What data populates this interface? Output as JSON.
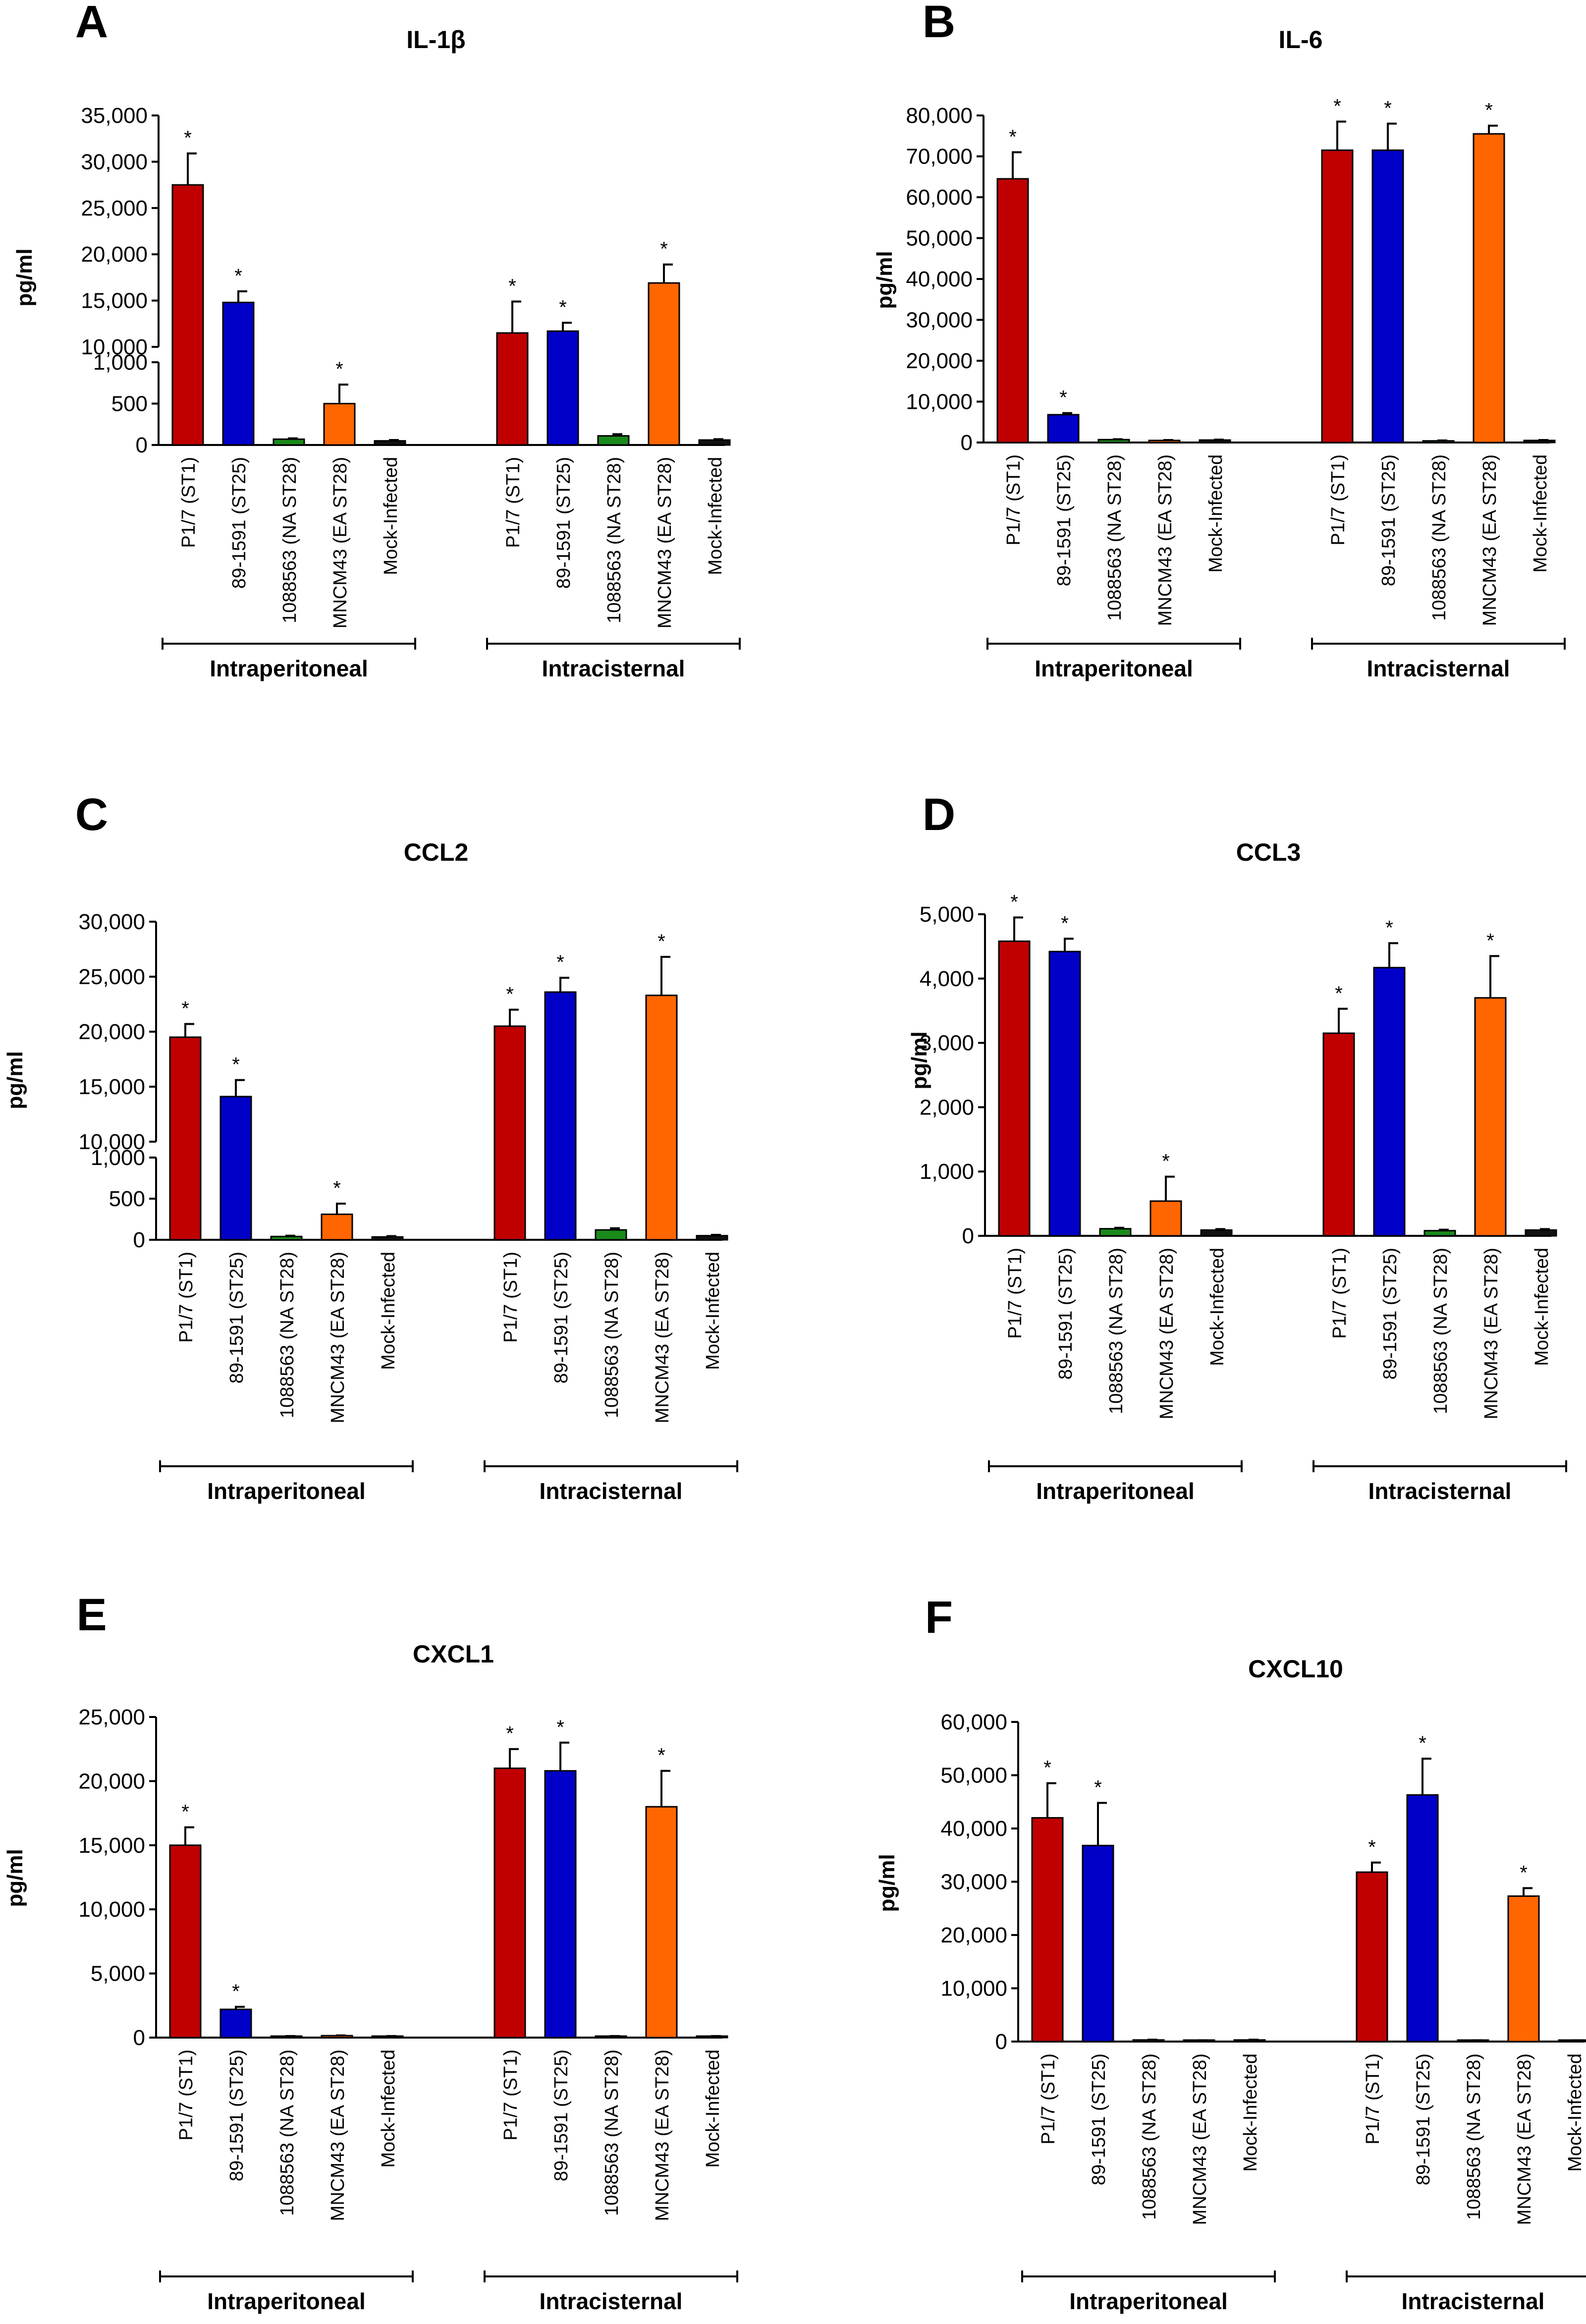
{
  "figure": {
    "categories": [
      "P1/7 (ST1)",
      "89-1591 (ST25)",
      "1088563 (NA ST28)",
      "MNCM43 (EA ST28)",
      "Mock-Infected"
    ],
    "groups": [
      "Intraperitoneal",
      "Intracisternal"
    ],
    "colors": [
      "#c00000",
      "#0000c8",
      "#1a8a1a",
      "#ff6600",
      "#111111"
    ],
    "ylabel": "pg/ml"
  },
  "chart_data": [
    {
      "type": "bar",
      "panel": "A",
      "title": "IL-1β",
      "ylabel": "pg/ml",
      "broken_axis": true,
      "lower_ticks": [
        "0",
        "500",
        "1,000"
      ],
      "upper_ticks": [
        "10,000",
        "15,000",
        "20,000",
        "25,000",
        "30,000",
        "35,000"
      ],
      "series": [
        {
          "name": "Intraperitoneal",
          "values": [
            27500,
            14800,
            70,
            500,
            50
          ],
          "errors": [
            3400,
            1200,
            10,
            230,
            10
          ],
          "significant": [
            true,
            true,
            false,
            true,
            false
          ]
        },
        {
          "name": "Intracisternal",
          "values": [
            11500,
            11700,
            110,
            16900,
            60
          ],
          "errors": [
            3400,
            900,
            20,
            2000,
            10
          ],
          "significant": [
            true,
            true,
            false,
            true,
            false
          ]
        }
      ]
    },
    {
      "type": "bar",
      "panel": "B",
      "title": "IL-6",
      "ylabel": "pg/ml",
      "broken_axis": false,
      "ylim": [
        0,
        80000
      ],
      "ticks": [
        "0",
        "10,000",
        "20,000",
        "30,000",
        "40,000",
        "50,000",
        "60,000",
        "70,000",
        "80,000"
      ],
      "series": [
        {
          "name": "Intraperitoneal",
          "values": [
            64500,
            6800,
            700,
            500,
            600
          ],
          "errors": [
            6500,
            400,
            100,
            100,
            100
          ],
          "significant": [
            true,
            true,
            false,
            false,
            false
          ]
        },
        {
          "name": "Intracisternal",
          "values": [
            71500,
            71500,
            400,
            75500,
            500
          ],
          "errors": [
            7000,
            6500,
            100,
            2000,
            100
          ],
          "significant": [
            true,
            true,
            false,
            true,
            false
          ]
        }
      ]
    },
    {
      "type": "bar",
      "panel": "C",
      "title": "CCL2",
      "ylabel": "pg/ml",
      "broken_axis": true,
      "lower_ticks": [
        "0",
        "500",
        "1,000"
      ],
      "upper_ticks": [
        "10,000",
        "15,000",
        "20,000",
        "25,000",
        "30,000"
      ],
      "series": [
        {
          "name": "Intraperitoneal",
          "values": [
            19500,
            14100,
            40,
            310,
            35
          ],
          "errors": [
            1200,
            1500,
            10,
            130,
            10
          ],
          "significant": [
            true,
            true,
            false,
            true,
            false
          ]
        },
        {
          "name": "Intracisternal",
          "values": [
            20500,
            23600,
            120,
            23300,
            50
          ],
          "errors": [
            1500,
            1300,
            20,
            3500,
            10
          ],
          "significant": [
            true,
            true,
            false,
            true,
            false
          ]
        }
      ]
    },
    {
      "type": "bar",
      "panel": "D",
      "title": "CCL3",
      "ylabel": "pg/ml",
      "broken_axis": false,
      "ylim": [
        0,
        5000
      ],
      "ticks": [
        "0",
        "1,000",
        "2,000",
        "3,000",
        "4,000",
        "5,000"
      ],
      "series": [
        {
          "name": "Intraperitoneal",
          "values": [
            4580,
            4420,
            110,
            540,
            90
          ],
          "errors": [
            370,
            200,
            15,
            380,
            15
          ],
          "significant": [
            true,
            true,
            false,
            true,
            false
          ]
        },
        {
          "name": "Intracisternal",
          "values": [
            3150,
            4170,
            80,
            3700,
            90
          ],
          "errors": [
            380,
            380,
            15,
            650,
            15
          ],
          "significant": [
            true,
            true,
            false,
            true,
            false
          ]
        }
      ]
    },
    {
      "type": "bar",
      "panel": "E",
      "title": "CXCL1",
      "ylabel": "pg/ml",
      "broken_axis": false,
      "ylim": [
        0,
        25000
      ],
      "ticks": [
        "0",
        "5,000",
        "10,000",
        "15,000",
        "20,000",
        "25,000"
      ],
      "series": [
        {
          "name": "Intraperitoneal",
          "values": [
            15000,
            2200,
            100,
            150,
            100
          ],
          "errors": [
            1400,
            200,
            20,
            20,
            20
          ],
          "significant": [
            true,
            true,
            false,
            false,
            false
          ]
        },
        {
          "name": "Intracisternal",
          "values": [
            21000,
            20800,
            100,
            18000,
            100
          ],
          "errors": [
            1500,
            2200,
            20,
            2800,
            20
          ],
          "significant": [
            true,
            true,
            false,
            true,
            false
          ]
        }
      ]
    },
    {
      "type": "bar",
      "panel": "F",
      "title": "CXCL10",
      "ylabel": "pg/ml",
      "broken_axis": false,
      "ylim": [
        0,
        60000
      ],
      "ticks": [
        "0",
        "10,000",
        "20,000",
        "30,000",
        "40,000",
        "50,000",
        "60,000"
      ],
      "series": [
        {
          "name": "Intraperitoneal",
          "values": [
            42000,
            36800,
            300,
            200,
            300
          ],
          "errors": [
            6500,
            8000,
            50,
            50,
            50
          ],
          "significant": [
            true,
            true,
            false,
            false,
            false
          ]
        },
        {
          "name": "Intracisternal",
          "values": [
            31800,
            46300,
            200,
            27300,
            200
          ],
          "errors": [
            1800,
            6800,
            50,
            1500,
            50
          ],
          "significant": [
            true,
            true,
            false,
            true,
            false
          ]
        }
      ]
    }
  ]
}
